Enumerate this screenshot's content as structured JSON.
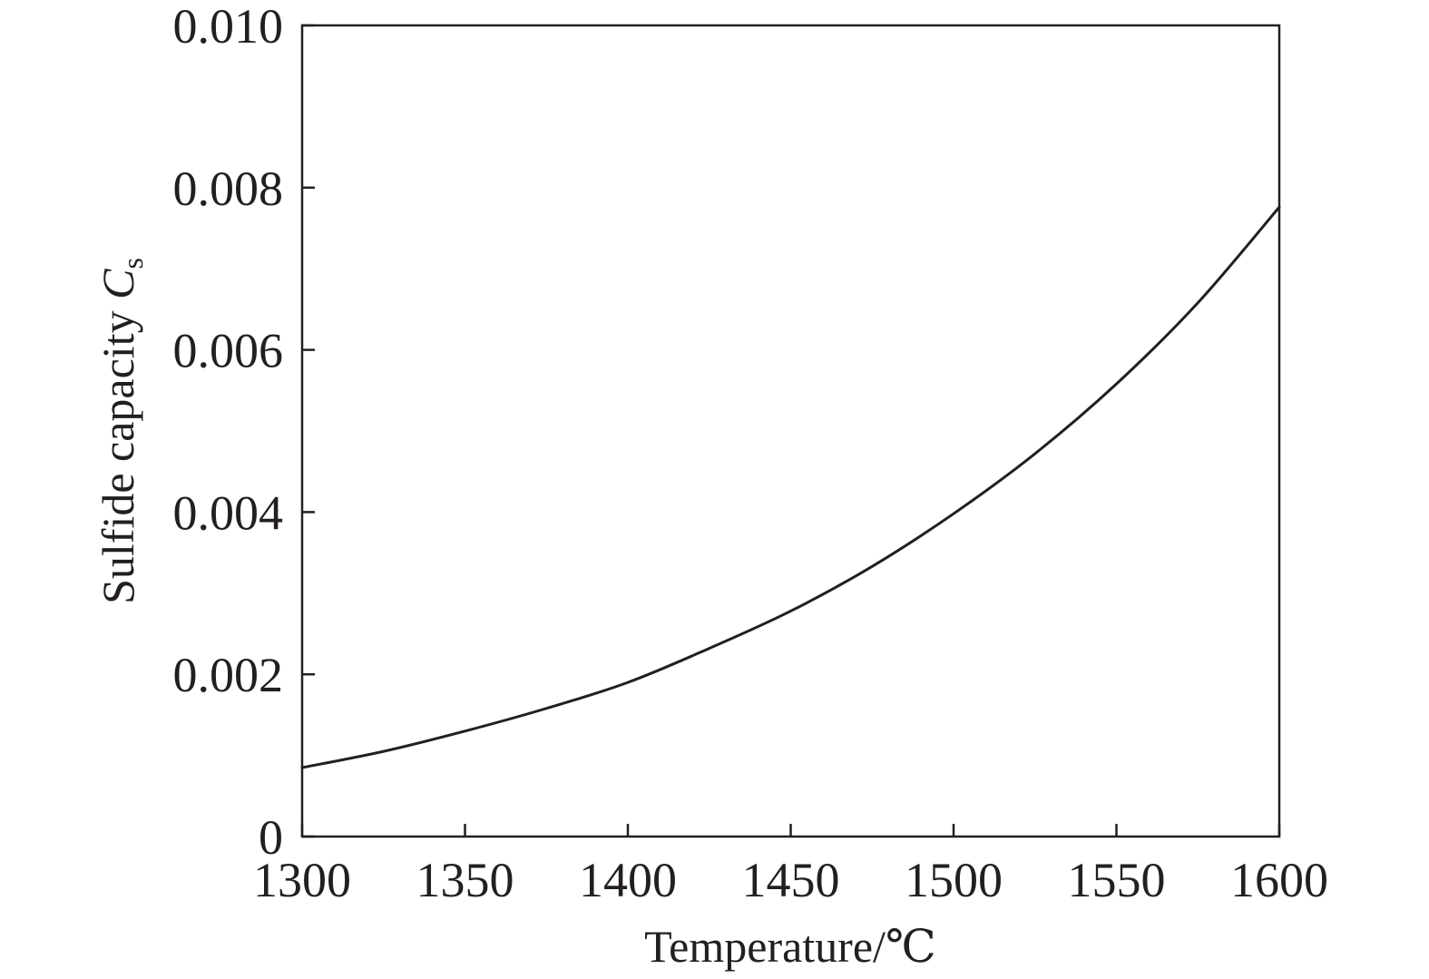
{
  "chart_data": {
    "type": "line",
    "title": "",
    "xlabel": "Temperature/℃",
    "ylabel": {
      "text": "Sulfide capacity ",
      "symbol": "C",
      "subscript": "s"
    },
    "xlim": [
      1300,
      1600
    ],
    "ylim": [
      0,
      0.01
    ],
    "x_ticks": [
      "1300",
      "1350",
      "1400",
      "1450",
      "1500",
      "1550",
      "1600"
    ],
    "y_ticks": [
      "0",
      "0.002",
      "0.004",
      "0.006",
      "0.008",
      "0.010"
    ],
    "grid": false,
    "series": [
      {
        "x": [
          1300,
          1325,
          1350,
          1375,
          1400,
          1425,
          1450,
          1475,
          1500,
          1525,
          1550,
          1575,
          1600
        ],
        "y": [
          0.00085,
          0.00105,
          0.0013,
          0.00158,
          0.0019,
          0.00232,
          0.00278,
          0.00333,
          0.00398,
          0.00472,
          0.00558,
          0.00658,
          0.00776
        ]
      }
    ],
    "colors": {
      "line": "#231f20",
      "axes": "#231f20"
    }
  }
}
